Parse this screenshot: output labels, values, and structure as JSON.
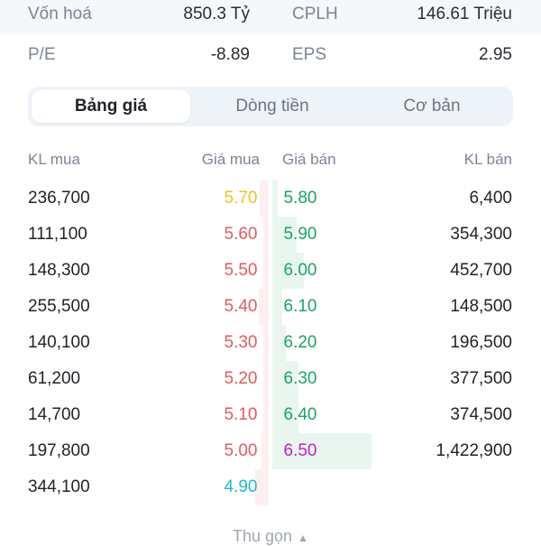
{
  "stats": {
    "row1": {
      "left_label": "Vốn hoá",
      "left_value": "850.3 Tỷ",
      "right_label": "CPLH",
      "right_value": "146.61 Triệu"
    },
    "row2": {
      "left_label": "P/E",
      "left_value": "-8.89",
      "right_label": "EPS",
      "right_value": "2.95"
    }
  },
  "tabs": [
    {
      "label": "Bảng giá",
      "active": true
    },
    {
      "label": "Dòng tiền",
      "active": false
    },
    {
      "label": "Cơ bản",
      "active": false
    }
  ],
  "columns": {
    "buy_volume": "KL mua",
    "buy_price": "Giá mua",
    "sell_price": "Giá bán",
    "sell_volume": "KL bán"
  },
  "colors": {
    "reference_yellow": "#f0c419",
    "down_red": "#e05a62",
    "up_green": "#1aa469",
    "ceiling_purple": "#c020c8",
    "floor_cyan": "#22b8d0"
  },
  "order_book": [
    {
      "buy_volume": "236,700",
      "buy_price": "5.70",
      "buy_color": "#f0c419",
      "sell_price": "5.80",
      "sell_color": "#1aa469",
      "sell_volume": "6,400"
    },
    {
      "buy_volume": "111,100",
      "buy_price": "5.60",
      "buy_color": "#e05a62",
      "sell_price": "5.90",
      "sell_color": "#1aa469",
      "sell_volume": "354,300"
    },
    {
      "buy_volume": "148,300",
      "buy_price": "5.50",
      "buy_color": "#e05a62",
      "sell_price": "6.00",
      "sell_color": "#1aa469",
      "sell_volume": "452,700"
    },
    {
      "buy_volume": "255,500",
      "buy_price": "5.40",
      "buy_color": "#e05a62",
      "sell_price": "6.10",
      "sell_color": "#1aa469",
      "sell_volume": "148,500"
    },
    {
      "buy_volume": "140,100",
      "buy_price": "5.30",
      "buy_color": "#e05a62",
      "sell_price": "6.20",
      "sell_color": "#1aa469",
      "sell_volume": "196,500"
    },
    {
      "buy_volume": "61,200",
      "buy_price": "5.20",
      "buy_color": "#e05a62",
      "sell_price": "6.30",
      "sell_color": "#1aa469",
      "sell_volume": "377,500"
    },
    {
      "buy_volume": "14,700",
      "buy_price": "5.10",
      "buy_color": "#e05a62",
      "sell_price": "6.40",
      "sell_color": "#1aa469",
      "sell_volume": "374,500"
    },
    {
      "buy_volume": "197,800",
      "buy_price": "5.00",
      "buy_color": "#e05a62",
      "sell_price": "6.50",
      "sell_color": "#c020c8",
      "sell_volume": "1,422,900"
    },
    {
      "buy_volume": "344,100",
      "buy_price": "4.90",
      "buy_color": "#22b8d0",
      "sell_price": "",
      "sell_color": "#1aa469",
      "sell_volume": ""
    }
  ],
  "collapse_label": "Thu gọn"
}
